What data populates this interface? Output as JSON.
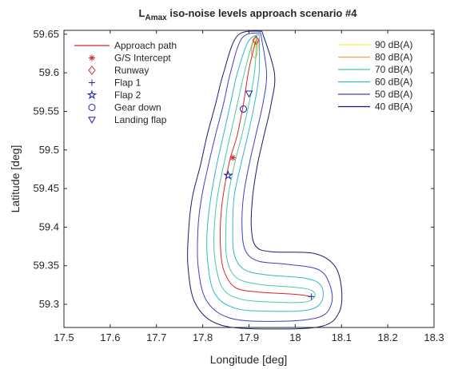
{
  "chart_data": {
    "type": "line",
    "title": {
      "main": "L",
      "subscript": "Amax",
      "rest": " iso-noise levels approach scenario #4"
    },
    "xlabel": "Longitude [deg]",
    "ylabel": "Latitude [deg]",
    "xlim": [
      17.5,
      18.3
    ],
    "ylim": [
      59.27,
      59.655
    ],
    "xticks": [
      "17.5",
      "17.6",
      "17.7",
      "17.8",
      "17.9",
      "18",
      "18.1",
      "18.2",
      "18.3"
    ],
    "yticks": [
      "59.3",
      "59.35",
      "59.4",
      "59.45",
      "59.5",
      "59.55",
      "59.6",
      "59.65"
    ],
    "grid": false,
    "legends": [
      {
        "position": "top-left",
        "entries": [
          {
            "label": "Approach path",
            "marker": "line",
            "color": "#d62728"
          },
          {
            "label": "G/S Intercept",
            "marker": "asterisk",
            "color": "#d62728"
          },
          {
            "label": "Runway",
            "marker": "diamond",
            "color": "#d62728"
          },
          {
            "label": "Flap 1",
            "marker": "plus",
            "color": "#1f1fb4"
          },
          {
            "label": "Flap 2",
            "marker": "star",
            "color": "#1f1fb4"
          },
          {
            "label": "Gear down",
            "marker": "circle",
            "color": "#1f1fb4"
          },
          {
            "label": "Landing flap",
            "marker": "triangle",
            "color": "#1f1fb4"
          }
        ]
      },
      {
        "position": "top-right",
        "entries": [
          {
            "label": "90 dB(A)",
            "marker": "line",
            "color": "#f5f542"
          },
          {
            "label": "80 dB(A)",
            "marker": "line",
            "color": "#f5a142"
          },
          {
            "label": "70 dB(A)",
            "marker": "line",
            "color": "#4cc9a0"
          },
          {
            "label": "60 dB(A)",
            "marker": "line",
            "color": "#2fb8c8"
          },
          {
            "label": "50 dB(A)",
            "marker": "line",
            "color": "#4040c8"
          },
          {
            "label": "40 dB(A)",
            "marker": "line",
            "color": "#1a1a6e"
          }
        ]
      }
    ],
    "approach_path": {
      "color": "#d62728",
      "points": [
        [
          17.915,
          59.642
        ],
        [
          17.9,
          59.605
        ],
        [
          17.888,
          59.56
        ],
        [
          17.875,
          59.52
        ],
        [
          17.86,
          59.49
        ],
        [
          17.848,
          59.455
        ],
        [
          17.84,
          59.42
        ],
        [
          17.838,
          59.38
        ],
        [
          17.845,
          59.345
        ],
        [
          17.87,
          59.322
        ],
        [
          17.92,
          59.316
        ],
        [
          18.0,
          59.313
        ],
        [
          18.035,
          59.31
        ]
      ]
    },
    "contours": [
      {
        "level": "90 dB(A)",
        "color": "#f5f542",
        "points": [
          [
            17.912,
            59.645
          ],
          [
            17.918,
            59.64
          ],
          [
            17.916,
            59.632
          ],
          [
            17.91,
            59.635
          ],
          [
            17.912,
            59.645
          ]
        ]
      },
      {
        "level": "80 dB(A)",
        "color": "#f5a142",
        "points": [
          [
            17.914,
            59.647
          ],
          [
            17.92,
            59.638
          ],
          [
            17.915,
            59.62
          ],
          [
            17.905,
            59.625
          ],
          [
            17.908,
            59.638
          ],
          [
            17.914,
            59.647
          ]
        ]
      },
      {
        "level": "70 dB(A)",
        "color": "#4cc9a0",
        "points": [
          [
            17.917,
            59.648
          ],
          [
            17.912,
            59.6
          ],
          [
            17.9,
            59.56
          ],
          [
            17.885,
            59.52
          ],
          [
            17.868,
            59.48
          ],
          [
            17.855,
            59.44
          ],
          [
            17.85,
            59.4
          ],
          [
            17.852,
            59.36
          ],
          [
            17.872,
            59.335
          ],
          [
            17.92,
            59.326
          ],
          [
            18.0,
            59.322
          ],
          [
            18.035,
            59.318
          ],
          [
            18.042,
            59.31
          ],
          [
            18.02,
            59.303
          ],
          [
            17.95,
            59.303
          ],
          [
            17.88,
            59.307
          ],
          [
            17.842,
            59.322
          ],
          [
            17.826,
            59.36
          ],
          [
            17.825,
            59.4
          ],
          [
            17.832,
            59.44
          ],
          [
            17.845,
            59.48
          ],
          [
            17.86,
            59.52
          ],
          [
            17.875,
            59.56
          ],
          [
            17.89,
            59.6
          ],
          [
            17.908,
            59.64
          ],
          [
            17.917,
            59.648
          ]
        ]
      },
      {
        "level": "60 dB(A)",
        "color": "#2fb8c8",
        "points": [
          [
            17.922,
            59.65
          ],
          [
            17.922,
            59.6
          ],
          [
            17.912,
            59.56
          ],
          [
            17.898,
            59.52
          ],
          [
            17.882,
            59.48
          ],
          [
            17.868,
            59.44
          ],
          [
            17.865,
            59.4
          ],
          [
            17.868,
            59.365
          ],
          [
            17.89,
            59.345
          ],
          [
            17.94,
            59.338
          ],
          [
            18.02,
            59.334
          ],
          [
            18.055,
            59.325
          ],
          [
            18.058,
            59.305
          ],
          [
            18.03,
            59.293
          ],
          [
            17.95,
            59.291
          ],
          [
            17.87,
            59.295
          ],
          [
            17.825,
            59.315
          ],
          [
            17.81,
            59.36
          ],
          [
            17.81,
            59.4
          ],
          [
            17.818,
            59.44
          ],
          [
            17.83,
            59.48
          ],
          [
            17.845,
            59.52
          ],
          [
            17.86,
            59.56
          ],
          [
            17.875,
            59.6
          ],
          [
            17.898,
            59.64
          ],
          [
            17.922,
            59.65
          ]
        ]
      },
      {
        "level": "50 dB(A)",
        "color": "#4040c8",
        "points": [
          [
            17.925,
            59.652
          ],
          [
            17.938,
            59.6
          ],
          [
            17.93,
            59.56
          ],
          [
            17.915,
            59.52
          ],
          [
            17.9,
            59.48
          ],
          [
            17.888,
            59.44
          ],
          [
            17.885,
            59.4
          ],
          [
            17.892,
            59.37
          ],
          [
            17.92,
            59.356
          ],
          [
            17.98,
            59.352
          ],
          [
            18.05,
            59.345
          ],
          [
            18.075,
            59.325
          ],
          [
            18.078,
            59.3
          ],
          [
            18.05,
            59.283
          ],
          [
            17.96,
            59.278
          ],
          [
            17.86,
            59.282
          ],
          [
            17.808,
            59.305
          ],
          [
            17.79,
            59.35
          ],
          [
            17.79,
            59.4
          ],
          [
            17.798,
            59.44
          ],
          [
            17.812,
            59.48
          ],
          [
            17.828,
            59.52
          ],
          [
            17.845,
            59.56
          ],
          [
            17.86,
            59.6
          ],
          [
            17.885,
            59.645
          ],
          [
            17.925,
            59.652
          ]
        ]
      },
      {
        "level": "40 dB(A)",
        "color": "#1a1a6e",
        "points": [
          [
            17.928,
            59.654
          ],
          [
            17.955,
            59.6
          ],
          [
            17.948,
            59.56
          ],
          [
            17.933,
            59.52
          ],
          [
            17.918,
            59.48
          ],
          [
            17.908,
            59.44
          ],
          [
            17.905,
            59.4
          ],
          [
            17.915,
            59.375
          ],
          [
            17.95,
            59.368
          ],
          [
            18.04,
            59.366
          ],
          [
            18.085,
            59.35
          ],
          [
            18.1,
            59.32
          ],
          [
            18.095,
            59.29
          ],
          [
            18.06,
            59.272
          ],
          [
            17.96,
            59.268
          ],
          [
            17.84,
            59.273
          ],
          [
            17.785,
            59.3
          ],
          [
            17.768,
            59.35
          ],
          [
            17.77,
            59.4
          ],
          [
            17.778,
            59.44
          ],
          [
            17.795,
            59.48
          ],
          [
            17.81,
            59.52
          ],
          [
            17.828,
            59.56
          ],
          [
            17.845,
            59.6
          ],
          [
            17.875,
            59.648
          ],
          [
            17.928,
            59.654
          ]
        ]
      }
    ],
    "markers": [
      {
        "name": "G/S Intercept",
        "shape": "asterisk",
        "color": "#d62728",
        "x": 17.865,
        "y": 59.49
      },
      {
        "name": "Runway",
        "shape": "diamond",
        "color": "#d62728",
        "x": 17.915,
        "y": 59.642
      },
      {
        "name": "Flap 1",
        "shape": "plus",
        "color": "#1f1fb4",
        "x": 18.035,
        "y": 59.31
      },
      {
        "name": "Flap 2",
        "shape": "star",
        "color": "#1f1fb4",
        "x": 17.855,
        "y": 59.467
      },
      {
        "name": "Gear down",
        "shape": "circle",
        "color": "#1f1fb4",
        "x": 17.888,
        "y": 59.553
      },
      {
        "name": "Landing flap",
        "shape": "triangle",
        "color": "#1f1fb4",
        "x": 17.9,
        "y": 59.573
      }
    ]
  }
}
